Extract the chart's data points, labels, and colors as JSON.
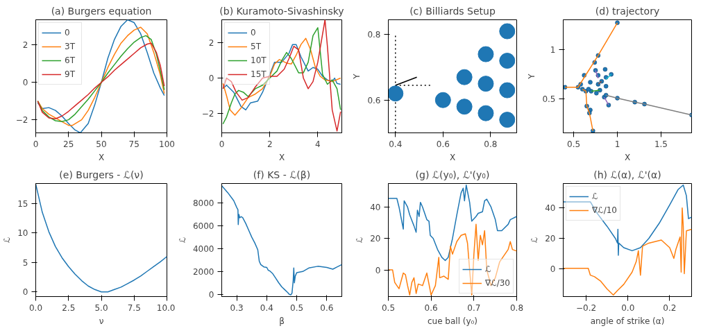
{
  "chart_data": [
    {
      "type": "line",
      "title": "(a) Burgers equation",
      "xlabel": "X",
      "xlim": [
        0,
        100
      ],
      "ylim": [
        -2.7,
        3.35
      ],
      "xticks": [
        0,
        25,
        50,
        75,
        100
      ],
      "yticks": [
        {
          "value": -2,
          "label": "−2"
        },
        0,
        2
      ],
      "legend": "top left",
      "series": [
        {
          "name": "0",
          "color": "#1f77b4",
          "x": [
            1.5,
            5,
            10,
            15,
            20,
            25,
            30,
            34,
            40,
            45,
            50,
            55,
            60,
            65,
            70,
            75,
            80,
            85,
            90,
            95,
            98
          ],
          "values": [
            -1.1,
            -1.4,
            -1.35,
            -1.5,
            -1.8,
            -2.2,
            -2.55,
            -2.7,
            -2.2,
            -1.2,
            0,
            1.3,
            2.3,
            3.0,
            3.35,
            3.2,
            2.6,
            1.6,
            0.5,
            -0.3,
            -0.7
          ]
        },
        {
          "name": "3T",
          "color": "#ff7f0e",
          "x": [
            1.5,
            5,
            10,
            15,
            20,
            25,
            28,
            35,
            40,
            45,
            50,
            55,
            60,
            65,
            70,
            75,
            80,
            85,
            90,
            95,
            98
          ],
          "values": [
            -1.0,
            -1.4,
            -1.7,
            -1.9,
            -2.1,
            -2.3,
            -2.3,
            -2.0,
            -1.5,
            -0.8,
            0,
            0.8,
            1.5,
            2.1,
            2.5,
            2.8,
            2.95,
            2.6,
            1.6,
            0.4,
            -0.6
          ]
        },
        {
          "name": "6T",
          "color": "#2ca02c",
          "x": [
            1.5,
            5,
            10,
            15,
            20,
            25,
            30,
            35,
            40,
            45,
            50,
            55,
            60,
            65,
            70,
            75,
            80,
            84,
            88,
            92,
            95,
            98
          ],
          "values": [
            -1.0,
            -1.5,
            -1.85,
            -2.05,
            -2.1,
            -2.0,
            -1.7,
            -1.3,
            -0.9,
            -0.45,
            0,
            0.5,
            0.95,
            1.4,
            1.8,
            2.15,
            2.4,
            2.5,
            2.3,
            1.5,
            0.6,
            -0.4
          ]
        },
        {
          "name": "9T",
          "color": "#d62728",
          "x": [
            1.5,
            5,
            10,
            15,
            20,
            25,
            30,
            35,
            40,
            45,
            50,
            55,
            60,
            65,
            70,
            75,
            80,
            85,
            88,
            92,
            95,
            98
          ],
          "values": [
            -1.0,
            -1.6,
            -1.9,
            -1.95,
            -1.8,
            -1.55,
            -1.25,
            -0.95,
            -0.65,
            -0.3,
            0,
            0.3,
            0.65,
            0.95,
            1.25,
            1.55,
            1.85,
            2.05,
            2.1,
            1.6,
            0.9,
            -0.2
          ]
        }
      ]
    },
    {
      "type": "line",
      "title": "(b) Kuramoto-Sivashinsky",
      "xlabel": "X",
      "xlim": [
        0,
        5
      ],
      "ylim": [
        -3.1,
        3.3
      ],
      "xticks": [
        0,
        2,
        4
      ],
      "yticks": [
        {
          "value": -2,
          "label": "−2"
        },
        0,
        2
      ],
      "legend": "top left",
      "series": [
        {
          "name": "0",
          "color": "#1f77b4",
          "x": [
            0.05,
            0.2,
            0.5,
            0.8,
            1.0,
            1.2,
            1.5,
            1.7,
            2.0,
            2.2,
            2.5,
            2.8,
            2.95,
            3.1,
            3.3,
            3.6,
            3.8,
            4.0,
            4.2,
            4.4,
            4.6,
            4.7,
            4.8,
            4.95
          ],
          "values": [
            -0.6,
            -0.4,
            -0.8,
            -1.6,
            -1.8,
            -1.4,
            -1.3,
            -0.8,
            0.2,
            0.9,
            0.9,
            1.4,
            1.9,
            1.9,
            1.2,
            0.4,
            0.6,
            0.5,
            0.1,
            -0.1,
            -0.2,
            0.0,
            -0.3,
            -0.35
          ]
        },
        {
          "name": "5T",
          "color": "#ff7f0e",
          "x": [
            0.05,
            0.2,
            0.35,
            0.55,
            0.8,
            1.1,
            1.4,
            1.7,
            2.0,
            2.2,
            2.4,
            2.7,
            2.9,
            3.1,
            3.3,
            3.5,
            3.7,
            3.9,
            4.1,
            4.3,
            4.6,
            4.95
          ],
          "values": [
            -0.3,
            -1.0,
            -1.8,
            -2.1,
            -1.7,
            -1.1,
            -0.9,
            -0.6,
            0.1,
            0.8,
            1.05,
            0.85,
            0.8,
            1.3,
            1.9,
            2.25,
            1.6,
            0.6,
            0.1,
            -0.1,
            -0.2,
            0.0
          ]
        },
        {
          "name": "10T",
          "color": "#2ca02c",
          "x": [
            0.05,
            0.2,
            0.4,
            0.55,
            0.7,
            0.9,
            1.1,
            1.4,
            1.7,
            2.0,
            2.3,
            2.5,
            2.7,
            2.9,
            3.2,
            3.4,
            3.6,
            3.8,
            4.0,
            4.2,
            4.4,
            4.6,
            4.8,
            4.95
          ],
          "values": [
            -2.6,
            -2.2,
            -1.4,
            -0.9,
            -0.7,
            -0.8,
            -1.05,
            -0.6,
            -0.4,
            0.0,
            0.4,
            1.0,
            1.45,
            1.1,
            0.3,
            0.3,
            0.9,
            2.4,
            2.85,
            0.2,
            -0.35,
            -0.1,
            -0.6,
            -1.8
          ]
        },
        {
          "name": "15T",
          "color": "#d62728",
          "x": [
            0.05,
            0.2,
            0.4,
            0.6,
            0.85,
            1.1,
            1.4,
            1.7,
            2.0,
            2.3,
            2.6,
            2.8,
            3.0,
            3.2,
            3.4,
            3.6,
            3.8,
            4.0,
            4.3,
            4.4,
            4.6,
            4.8,
            4.95
          ],
          "values": [
            -0.6,
            0.0,
            -0.2,
            -0.8,
            -1.25,
            -1.1,
            -0.5,
            0.0,
            0.1,
            0.1,
            0.5,
            1.1,
            1.8,
            1.6,
            0.0,
            -0.6,
            -0.2,
            0.9,
            3.3,
            1.8,
            -1.8,
            -3.0,
            -1.9
          ]
        }
      ]
    },
    {
      "type": "bubble",
      "title": "(c) Billiards Setup",
      "xlabel": "X",
      "ylabel": "Y",
      "xlim": [
        0.37,
        0.91
      ],
      "ylim": [
        0.5,
        0.845
      ],
      "xticks": [
        0.4,
        0.6,
        0.8
      ],
      "yticks": [
        0.6,
        0.8
      ],
      "series": [
        {
          "type": "line",
          "color": "#000000",
          "line_style": "dotted",
          "x": [
            0.4,
            0.4
          ],
          "values": [
            0.5,
            0.8
          ]
        },
        {
          "type": "line",
          "color": "#000000",
          "line_style": "dotted",
          "x": [
            0.4,
            0.55
          ],
          "values": [
            0.645,
            0.645
          ]
        },
        {
          "type": "line",
          "color": "#000000",
          "x": [
            0.4,
            0.49
          ],
          "values": [
            0.645,
            0.67
          ]
        },
        {
          "type": "bubble",
          "color": "#1f77b4",
          "x": [
            0.4,
            0.6,
            0.69,
            0.69,
            0.78,
            0.78,
            0.78,
            0.87,
            0.87,
            0.87,
            0.87
          ],
          "values": [
            0.62,
            0.6,
            0.67,
            0.58,
            0.74,
            0.65,
            0.56,
            0.81,
            0.72,
            0.63,
            0.54
          ],
          "sizes": [
            1,
            1,
            1,
            1,
            1,
            1,
            1,
            1,
            1,
            1,
            1
          ]
        }
      ]
    },
    {
      "type": "scatter",
      "title": "(d) trajectory",
      "xlabel": "X",
      "ylabel": "Y",
      "xlim": [
        0.38,
        1.85
      ],
      "ylim": [
        0.16,
        1.3
      ],
      "xticks": [
        0.5,
        1.0,
        1.5
      ],
      "yticks": [
        0.5,
        1.0
      ],
      "series": [
        {
          "type": "scatter",
          "color": "#1f77b4",
          "x": [
            0.4,
            0.55,
            0.58,
            0.6,
            0.64,
            0.65,
            0.69,
            0.68,
            0.72,
            0.62,
            0.78,
            0.74,
            1.0,
            0.75,
            0.86,
            0.69,
            0.78,
            0.87,
            0.93,
            0.87,
            0.7,
            0.8,
            0.78,
            0.82,
            0.85,
            0.9,
            0.87,
            1.0,
            1.2,
            1.31,
            1.85,
            0.76,
            0.67
          ],
          "values": [
            0.62,
            0.62,
            0.65,
            0.6,
            0.58,
            0.43,
            0.39,
            0.36,
            0.18,
            0.74,
            0.94,
            0.87,
            1.27,
            0.79,
            0.8,
            0.67,
            0.74,
            0.72,
            0.75,
            0.63,
            0.58,
            0.59,
            0.65,
            0.68,
            0.52,
            0.44,
            0.54,
            0.51,
            0.47,
            0.45,
            0.34,
            0.56,
            0.6
          ]
        },
        {
          "type": "line",
          "color": "#ff7f0e",
          "x": [
            0.4,
            0.55,
            0.78,
            1.0
          ],
          "values": [
            0.62,
            0.62,
            0.94,
            1.27
          ]
        },
        {
          "type": "line",
          "color": "#ff7f0e",
          "x": [
            0.6,
            0.64,
            0.65,
            0.68,
            0.72
          ],
          "values": [
            0.6,
            0.58,
            0.43,
            0.36,
            0.18
          ]
        },
        {
          "type": "line",
          "color": "#7f7f7f",
          "x": [
            0.87,
            1.0,
            1.2,
            1.31,
            1.85
          ],
          "values": [
            0.54,
            0.51,
            0.47,
            0.45,
            0.34
          ]
        },
        {
          "type": "line",
          "color": "#9467bd",
          "x": [
            0.75,
            0.78
          ],
          "values": [
            0.79,
            0.71
          ]
        },
        {
          "type": "line",
          "color": "#9467bd",
          "x": [
            0.85,
            0.9
          ],
          "values": [
            0.52,
            0.44
          ]
        },
        {
          "type": "line",
          "color": "#17becf",
          "x": [
            0.87,
            0.93
          ],
          "values": [
            0.7,
            0.75
          ]
        },
        {
          "type": "line",
          "color": "#2ca02c",
          "x": [
            0.7,
            0.8
          ],
          "values": [
            0.58,
            0.59
          ]
        },
        {
          "type": "line",
          "color": "#8c564b",
          "x": [
            0.78,
            0.82
          ],
          "values": [
            0.65,
            0.68
          ]
        }
      ]
    },
    {
      "type": "line",
      "title": "(e) Burgers - ℒ(ν)",
      "xlabel": "ν",
      "ylabel": "ℒ",
      "xlim": [
        0,
        10
      ],
      "ylim": [
        -0.8,
        18.4
      ],
      "xticks": [
        {
          "value": 0,
          "label": "0.0"
        },
        2.5,
        {
          "value": 5,
          "label": "5.0"
        },
        7.5,
        {
          "value": 10,
          "label": "10.0"
        }
      ],
      "yticks": [
        0,
        5,
        10,
        15
      ],
      "series": [
        {
          "color": "#1f77b4",
          "x": [
            0,
            0.5,
            1,
            1.5,
            2,
            2.5,
            3,
            3.5,
            4,
            4.5,
            5,
            5.5,
            6,
            6.5,
            7,
            7.5,
            8,
            8.5,
            9,
            9.5,
            10
          ],
          "values": [
            18.3,
            13.5,
            10.2,
            7.7,
            5.8,
            4.3,
            3.0,
            1.9,
            1.0,
            0.4,
            0,
            0,
            0.4,
            0.8,
            1.4,
            2.0,
            2.7,
            3.5,
            4.3,
            5.1,
            6.0
          ]
        }
      ]
    },
    {
      "type": "line",
      "title": "(f) KS - ℒ(β)",
      "xlabel": "β",
      "ylabel": "ℒ",
      "xlim": [
        0.25,
        0.65
      ],
      "ylim": [
        -200,
        9700
      ],
      "xticks": [
        0.3,
        0.4,
        0.5,
        0.6
      ],
      "yticks": [
        0,
        2000,
        4000,
        6000,
        8000
      ],
      "series": [
        {
          "color": "#1f77b4",
          "x": [
            0.25,
            0.27,
            0.29,
            0.3,
            0.304,
            0.305,
            0.307,
            0.31,
            0.315,
            0.32,
            0.33,
            0.34,
            0.35,
            0.36,
            0.37,
            0.375,
            0.38,
            0.39,
            0.4,
            0.405,
            0.41,
            0.42,
            0.43,
            0.44,
            0.45,
            0.46,
            0.47,
            0.475,
            0.48,
            0.484,
            0.488,
            0.49,
            0.492,
            0.495,
            0.5,
            0.52,
            0.54,
            0.57,
            0.6,
            0.62,
            0.635,
            0.65
          ],
          "values": [
            9500,
            8900,
            8200,
            7600,
            7400,
            6100,
            7000,
            6700,
            6800,
            6700,
            6200,
            5600,
            5000,
            4500,
            3900,
            2900,
            2600,
            2400,
            2350,
            2100,
            2050,
            1800,
            1400,
            1000,
            650,
            400,
            150,
            0,
            -50,
            100,
            1200,
            2300,
            1000,
            1600,
            1900,
            2000,
            2300,
            2450,
            2350,
            2200,
            2400,
            2600
          ]
        }
      ]
    },
    {
      "type": "line",
      "title": "(g) ℒ(y₀), ℒ'(y₀)",
      "xlabel": "cue ball (y₀)",
      "ylabel": "ℒ",
      "xlim": [
        0.5,
        0.8
      ],
      "ylim": [
        -17,
        55
      ],
      "xticks": [
        0.5,
        0.6,
        0.7,
        0.8
      ],
      "yticks": [
        0,
        20,
        40
      ],
      "legend": "bottom right",
      "series": [
        {
          "name": "ℒ",
          "color": "#1f77b4",
          "x": [
            0.5,
            0.52,
            0.525,
            0.535,
            0.537,
            0.545,
            0.55,
            0.56,
            0.565,
            0.568,
            0.572,
            0.575,
            0.58,
            0.59,
            0.595,
            0.598,
            0.605,
            0.615,
            0.625,
            0.633,
            0.64,
            0.65,
            0.66,
            0.67,
            0.675,
            0.678,
            0.682,
            0.69,
            0.695,
            0.705,
            0.71,
            0.72,
            0.725,
            0.73,
            0.74,
            0.75,
            0.755,
            0.765,
            0.78,
            0.785,
            0.8
          ],
          "values": [
            45.5,
            45.5,
            40,
            26,
            44,
            40,
            35,
            28,
            24,
            38,
            34,
            43,
            40,
            32,
            31,
            22,
            20,
            13,
            8,
            6,
            8,
            20,
            35,
            49,
            52,
            44,
            54,
            43,
            31,
            34,
            36,
            37,
            44,
            45,
            40,
            32,
            25,
            25,
            29,
            32,
            34
          ]
        },
        {
          "name": "∇ℒ/30",
          "color": "#ff7f0e",
          "x": [
            0.5,
            0.51,
            0.515,
            0.525,
            0.535,
            0.54,
            0.545,
            0.55,
            0.555,
            0.56,
            0.565,
            0.57,
            0.58,
            0.59,
            0.6,
            0.61,
            0.618,
            0.62,
            0.63,
            0.64,
            0.645,
            0.65,
            0.66,
            0.67,
            0.68,
            0.685,
            0.69,
            0.695,
            0.7,
            0.705,
            0.71,
            0.715,
            0.72,
            0.725,
            0.73,
            0.74,
            0.75,
            0.76,
            0.77,
            0.78,
            0.785,
            0.79,
            0.8
          ],
          "values": [
            0,
            0,
            -8,
            -12,
            -2,
            -3,
            -10,
            -16,
            -8,
            -5,
            -15,
            -9,
            -10,
            -2,
            -16,
            -10,
            8,
            -5,
            -4,
            -6,
            15,
            10,
            18,
            22,
            23,
            17,
            0,
            -16,
            10,
            29,
            6,
            22,
            16,
            25,
            0,
            -10,
            -5,
            5,
            9,
            13,
            18,
            13,
            12
          ]
        }
      ]
    },
    {
      "type": "line",
      "title": "(h) ℒ(α), ℒ'(α)",
      "xlabel": "angle of strike (α)",
      "ylabel": "ℒ",
      "xlim": [
        -0.31,
        0.305
      ],
      "ylim": [
        -18,
        56
      ],
      "xticks": [
        {
          "value": -0.2,
          "label": "−0.2"
        },
        {
          "value": 0,
          "label": "0.0"
        },
        0.2
      ],
      "yticks": [
        0,
        20,
        40
      ],
      "legend": "top left",
      "series": [
        {
          "name": "ℒ",
          "color": "#1f77b4",
          "x": [
            -0.31,
            -0.18,
            -0.15,
            -0.1,
            -0.06,
            -0.05,
            -0.048,
            -0.046,
            -0.044,
            -0.02,
            0.02,
            0.06,
            0.1,
            0.15,
            0.2,
            0.24,
            0.265,
            0.28,
            0.29,
            0.305
          ],
          "values": [
            44,
            44,
            37,
            28,
            20,
            17,
            26,
            9,
            17,
            14,
            12,
            14,
            20,
            30,
            42,
            52,
            55,
            48,
            33,
            34
          ]
        },
        {
          "name": "∇ℒ/10",
          "color": "#ff7f0e",
          "x": [
            -0.31,
            -0.19,
            -0.18,
            -0.16,
            -0.13,
            -0.1,
            -0.07,
            -0.05,
            -0.02,
            0.02,
            0.04,
            0.05,
            0.06,
            0.07,
            0.1,
            0.16,
            0.2,
            0.22,
            0.23,
            0.25,
            0.255,
            0.26,
            0.265,
            0.27,
            0.28,
            0.305
          ],
          "values": [
            0.5,
            0.5,
            -4,
            -5,
            -8,
            -13,
            -17,
            -14,
            -10,
            -2,
            5,
            12,
            -4,
            15,
            17,
            19,
            14,
            7,
            13,
            21,
            -2,
            40,
            28,
            -3,
            25,
            26
          ]
        }
      ]
    }
  ]
}
